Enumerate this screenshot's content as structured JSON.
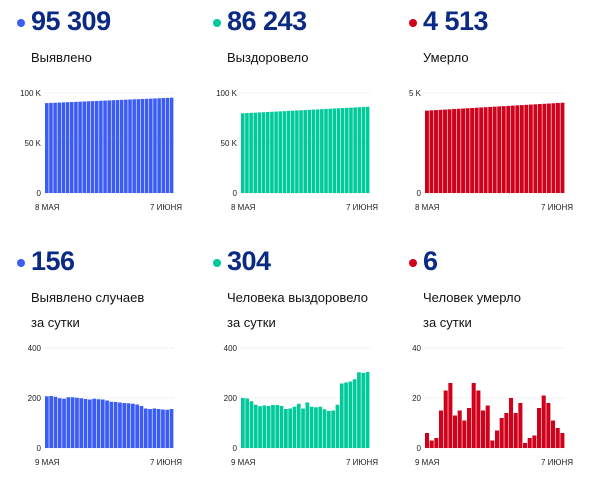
{
  "colors": {
    "cases": "#3b5cf5",
    "recovered": "#00c99a",
    "deaths": "#d0021b",
    "number": "#0b2a85"
  },
  "chart_data": [
    {
      "id": "cases-total",
      "type": "bar",
      "title": "95 309",
      "subtitle": "Выявлено",
      "color": "#3b5cf5",
      "yticks": [
        "0",
        "50 K",
        "100 K"
      ],
      "ylim": [
        0,
        100000
      ],
      "xstart": "8 МАЯ",
      "xend": "7 ИЮНЯ",
      "start": 89900,
      "end": 95309,
      "count": 31
    },
    {
      "id": "recovered-total",
      "type": "bar",
      "title": "86 243",
      "subtitle": "Выздоровело",
      "color": "#00c99a",
      "yticks": [
        "0",
        "50 K",
        "100 K"
      ],
      "ylim": [
        0,
        100000
      ],
      "xstart": "8 МАЯ",
      "xend": "7 ИЮНЯ",
      "start": 79700,
      "end": 86243,
      "count": 31
    },
    {
      "id": "deaths-total",
      "type": "bar",
      "title": "4 513",
      "subtitle": "Умерло",
      "color": "#d0021b",
      "yticks": [
        "0",
        "5 K"
      ],
      "ylim": [
        0,
        5000
      ],
      "xstart": "8 МАЯ",
      "xend": "7 ИЮНЯ",
      "start": 4120,
      "end": 4513,
      "count": 31
    },
    {
      "id": "cases-daily",
      "type": "bar",
      "title": "156",
      "subtitle": "Выявлено случаев",
      "subtitle2": "за сутки",
      "color": "#3b5cf5",
      "yticks": [
        "0",
        "200",
        "400"
      ],
      "ylim": [
        0,
        400
      ],
      "xstart": "9 МАЯ",
      "xend": "7 ИЮНЯ",
      "values": [
        207,
        208,
        205,
        199,
        197,
        203,
        203,
        201,
        199,
        196,
        194,
        197,
        195,
        194,
        190,
        185,
        184,
        182,
        180,
        179,
        177,
        174,
        168,
        158,
        156,
        158,
        156,
        154,
        153,
        156
      ]
    },
    {
      "id": "recovered-daily",
      "type": "bar",
      "title": "304",
      "subtitle": "Человека выздоровело",
      "subtitle2": "за сутки",
      "color": "#00c99a",
      "yticks": [
        "0",
        "200",
        "400"
      ],
      "ylim": [
        0,
        400
      ],
      "xstart": "9 МАЯ",
      "xend": "7 ИЮНЯ",
      "values": [
        200,
        198,
        187,
        173,
        167,
        170,
        168,
        172,
        172,
        168,
        156,
        158,
        165,
        177,
        158,
        182,
        165,
        163,
        165,
        155,
        148,
        150,
        173,
        258,
        262,
        266,
        275,
        303,
        300,
        304
      ]
    },
    {
      "id": "deaths-daily",
      "type": "bar",
      "title": "6",
      "subtitle": "Человек умерло",
      "subtitle2": "за сутки",
      "color": "#d0021b",
      "yticks": [
        "0",
        "20",
        "40"
      ],
      "ylim": [
        0,
        40
      ],
      "xstart": "9 МАЯ",
      "xend": "7 ИЮНЯ",
      "values": [
        6,
        3,
        4,
        15,
        23,
        26,
        13,
        15,
        11,
        16,
        26,
        23,
        15,
        17,
        3,
        7,
        12,
        14,
        20,
        14,
        18,
        2,
        4,
        5,
        16,
        21,
        18,
        11,
        8,
        6
      ]
    }
  ]
}
